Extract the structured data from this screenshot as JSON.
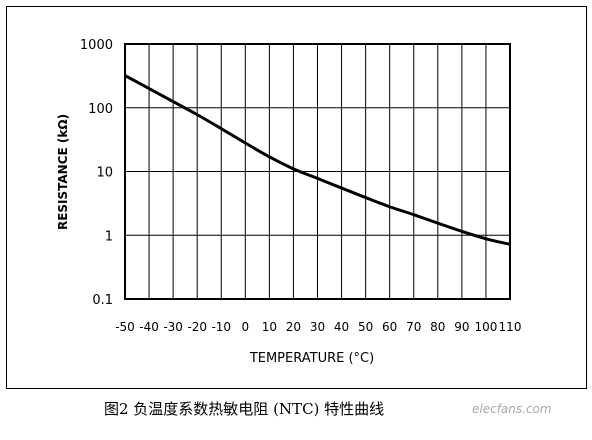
{
  "chart_data": {
    "type": "line",
    "xlabel": "TEMPERATURE (°C)",
    "ylabel": "RESISTANCE (kΩ)",
    "y_scale": "log",
    "xlim": [
      -50,
      110
    ],
    "ylim": [
      0.1,
      1000
    ],
    "x_ticks": [
      -50,
      -40,
      -30,
      -20,
      -10,
      0,
      10,
      20,
      30,
      40,
      50,
      60,
      70,
      80,
      90,
      100,
      110
    ],
    "x_tick_labels": [
      "-50",
      "-40",
      "-30",
      "-20",
      "-10",
      "0",
      "10",
      "20",
      "30",
      "40",
      "50",
      "60",
      "70",
      "80",
      "90",
      "100",
      "110"
    ],
    "y_ticks": [
      0.1,
      1,
      10,
      100,
      1000
    ],
    "y_tick_labels": [
      "0.1",
      "1",
      "10",
      "100",
      "1000"
    ],
    "grid": true,
    "series": [
      {
        "x": [
          -50,
          -40,
          -30,
          -20,
          -10,
          0,
          10,
          20,
          30,
          40,
          50,
          60,
          70,
          80,
          90,
          100,
          110
        ],
        "y": [
          320,
          200,
          125,
          78,
          47,
          28,
          17,
          11,
          7.8,
          5.5,
          3.9,
          2.8,
          2.1,
          1.55,
          1.15,
          0.88,
          0.72
        ]
      }
    ]
  },
  "caption": "图2 负温度系数热敏电阻 (NTC) 特性曲线",
  "watermark": "elecfans.com"
}
